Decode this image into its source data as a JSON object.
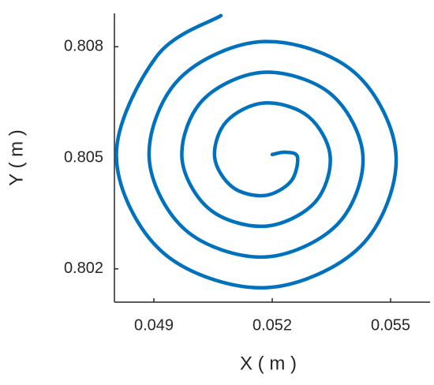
{
  "chart_data": {
    "type": "line",
    "x_label": "X ( m )",
    "y_label": "Y ( m )",
    "series": [
      {
        "color": "#0072bd",
        "x": [
          0.052,
          0.05234,
          0.05264,
          0.05247,
          0.0518,
          0.05099,
          0.05054,
          0.05084,
          0.0518,
          0.05291,
          0.05347,
          0.05306,
          0.0518,
          0.0504,
          0.04971,
          0.05025,
          0.0518,
          0.0535,
          0.0543,
          0.05364,
          0.0518,
          0.04981,
          0.04888,
          0.04966,
          0.0518,
          0.05409,
          0.05514,
          0.05423,
          0.0518,
          0.04922,
          0.04805,
          0.04907,
          0.0507
        ],
        "values": [
          0.80509,
          0.80515,
          0.80502,
          0.80436,
          0.80398,
          0.80421,
          0.80502,
          0.80598,
          0.80648,
          0.80612,
          0.80502,
          0.80377,
          0.80315,
          0.80362,
          0.80502,
          0.80657,
          0.80731,
          0.80671,
          0.80502,
          0.80319,
          0.80232,
          0.80304,
          0.80502,
          0.80715,
          0.80814,
          0.8073,
          0.80502,
          0.8026,
          0.80149,
          0.80245,
          0.80502,
          0.80774,
          0.80884
        ]
      }
    ],
    "xlim": [
      0.048,
      0.056
    ],
    "xticks": [
      0.049,
      0.052,
      0.055
    ],
    "ylim": [
      0.8011,
      0.8089
    ],
    "yticks": [
      0.802,
      0.805,
      0.808
    ]
  }
}
